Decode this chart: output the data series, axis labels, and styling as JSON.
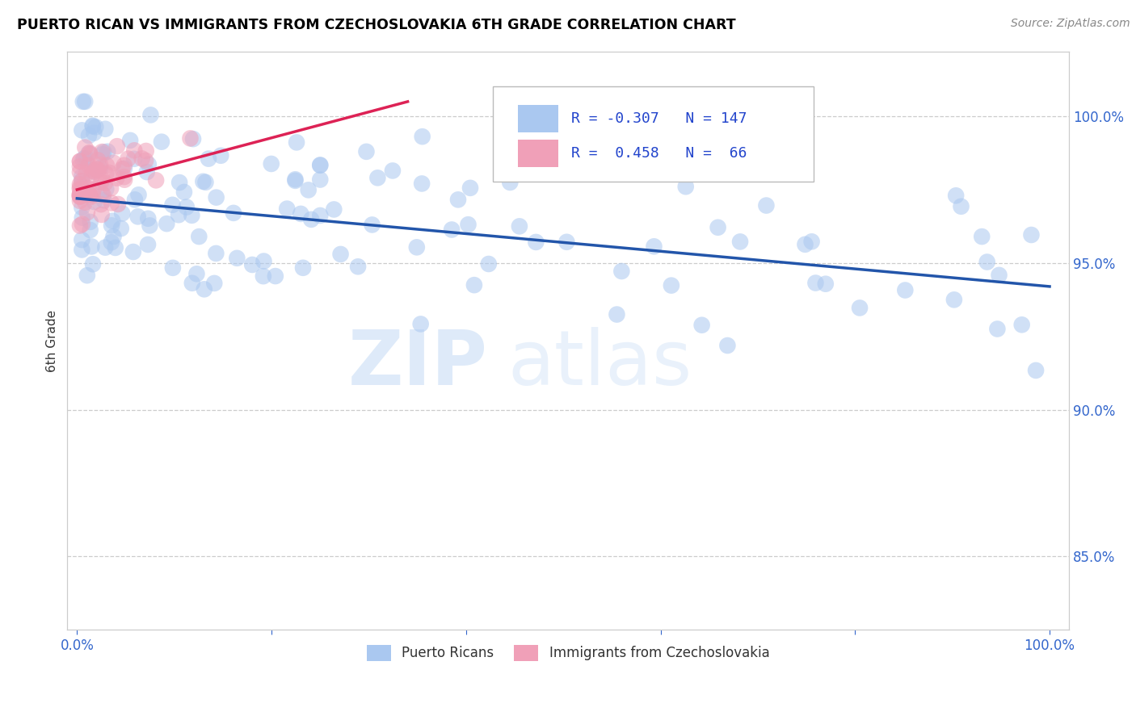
{
  "title": "PUERTO RICAN VS IMMIGRANTS FROM CZECHOSLOVAKIA 6TH GRADE CORRELATION CHART",
  "source_text": "Source: ZipAtlas.com",
  "ylabel": "6th Grade",
  "x_ticks": [
    0.0,
    0.2,
    0.4,
    0.6,
    0.8,
    1.0
  ],
  "x_tick_labels": [
    "0.0%",
    "",
    "",
    "",
    "",
    "100.0%"
  ],
  "y_ticks": [
    0.85,
    0.9,
    0.95,
    1.0
  ],
  "y_tick_labels": [
    "85.0%",
    "90.0%",
    "95.0%",
    "100.0%"
  ],
  "ylim": [
    0.825,
    1.022
  ],
  "xlim": [
    -0.01,
    1.02
  ],
  "legend_r_blue": "-0.307",
  "legend_n_blue": "147",
  "legend_r_pink": "0.458",
  "legend_n_pink": "66",
  "blue_color": "#aac8f0",
  "pink_color": "#f0a0b8",
  "blue_line_color": "#2255aa",
  "pink_line_color": "#dd2255",
  "watermark_zip": "ZIP",
  "watermark_atlas": "atlas",
  "blue_trend_x0": 0.0,
  "blue_trend_y0": 0.972,
  "blue_trend_x1": 1.0,
  "blue_trend_y1": 0.942,
  "pink_trend_x0": 0.0,
  "pink_trend_y0": 0.975,
  "pink_trend_x1": 0.34,
  "pink_trend_y1": 1.005
}
